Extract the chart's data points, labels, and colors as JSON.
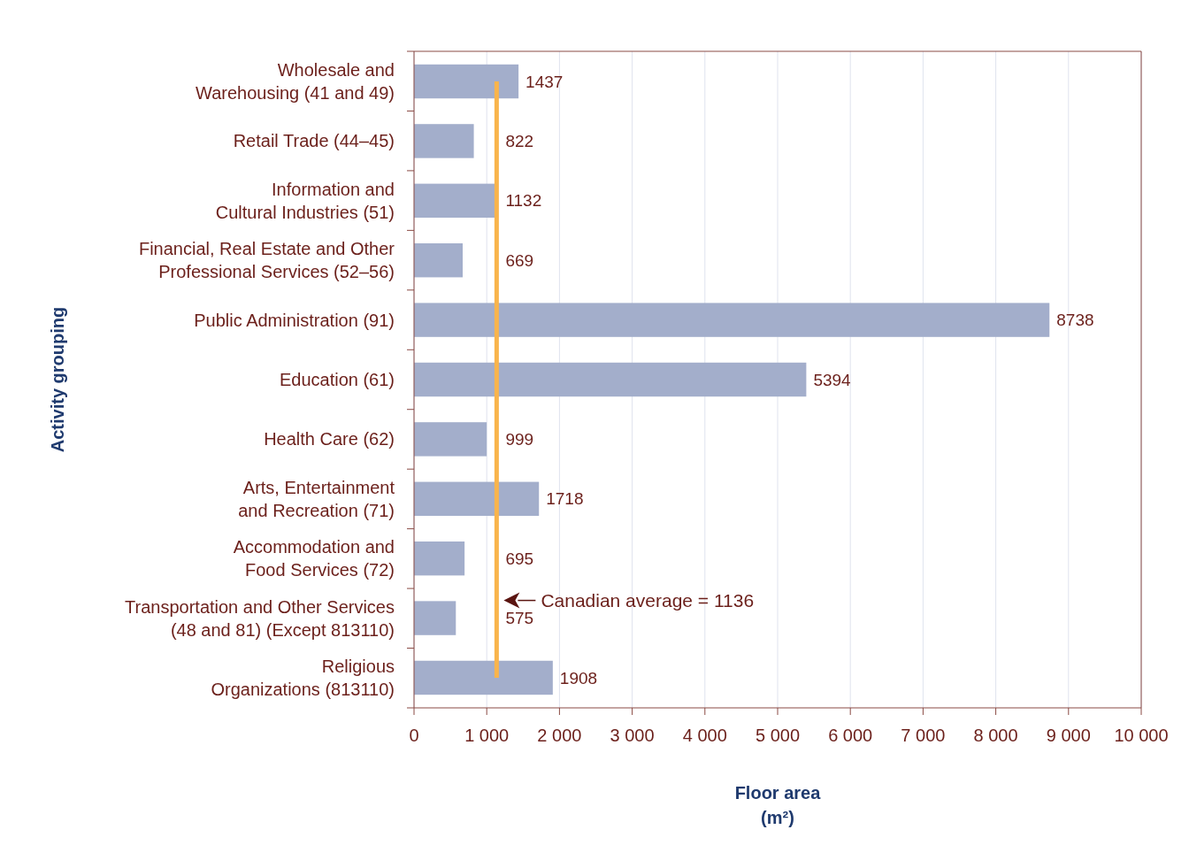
{
  "chart_data": {
    "type": "bar",
    "orientation": "horizontal",
    "ylabel": "Activity grouping",
    "xlabel": "Floor area (m²)",
    "categories": [
      "Wholesale and Warehousing (41 and 49)",
      "Retail Trade (44–45)",
      "Information and Cultural Industries (51)",
      "Financial, Real Estate and Other Professional Services (52–56)",
      "Public Administration (91)",
      "Education (61)",
      "Health Care (62)",
      "Arts, Entertainment and Recreation (71)",
      "Accommodation and Food Services (72)",
      "Transportation and Other Services (48 and 81) (Except 813110)",
      "Religious Organizations (813110)"
    ],
    "values": [
      1437,
      822,
      1132,
      669,
      8738,
      5394,
      999,
      1718,
      695,
      575,
      1908
    ],
    "color": "#a3aecb",
    "data_labels": true,
    "xlim": [
      0,
      10000
    ],
    "xticks": [
      0,
      {
        "value": 1000,
        "label": "1 000"
      },
      {
        "value": 2000,
        "label": "2 000"
      },
      {
        "value": 3000,
        "label": "3 000"
      },
      {
        "value": 4000,
        "label": "4 000"
      },
      {
        "value": 5000,
        "label": "5 000"
      },
      {
        "value": 6000,
        "label": "6 000"
      },
      {
        "value": 7000,
        "label": "7 000"
      },
      {
        "value": 8000,
        "label": "8 000"
      },
      {
        "value": 9000,
        "label": "9 000"
      },
      {
        "value": 10000,
        "label": "10 000"
      }
    ],
    "grid": "x",
    "ref_lines": [
      {
        "axis": "x",
        "value": 1136,
        "label": "Canadian average = 1136",
        "color": "#f9b44c"
      }
    ]
  }
}
